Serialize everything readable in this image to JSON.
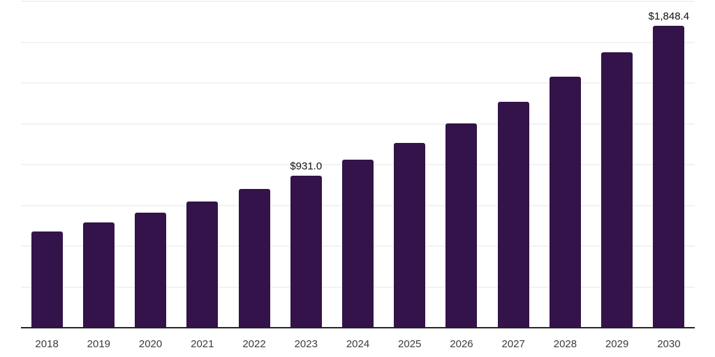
{
  "chart_data": {
    "type": "bar",
    "title": "",
    "xlabel": "",
    "ylabel": "",
    "categories": [
      "2018",
      "2019",
      "2020",
      "2021",
      "2022",
      "2023",
      "2024",
      "2025",
      "2026",
      "2027",
      "2028",
      "2029",
      "2030"
    ],
    "values": [
      588,
      644,
      705,
      774,
      852,
      931.0,
      1030,
      1134,
      1253,
      1385,
      1538,
      1688,
      1848.4
    ],
    "data_labels": {
      "2023": "$931.0",
      "2030": "$1,848.4"
    },
    "ylim": [
      0,
      2000
    ],
    "grid_step": 250,
    "grid_on": true,
    "legend": "none",
    "bar_color": "#331349",
    "axis_color": "#262626",
    "grid_color": "#f2f2f4",
    "tick_color": "#3a3a3a",
    "data_label_color": "#111111",
    "background_color": "#ffffff"
  }
}
